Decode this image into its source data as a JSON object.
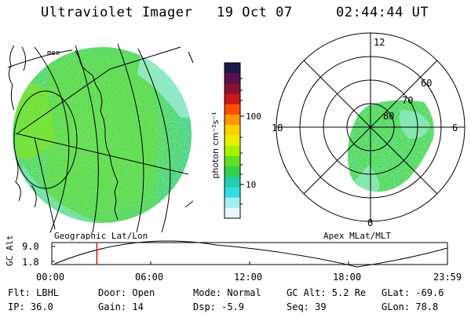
{
  "header": {
    "instrument": "Ultraviolet Imager",
    "date": "19 Oct 07",
    "time": "02:44:44 UT"
  },
  "colorbar": {
    "unit_label": "photon cm⁻²s⁻¹",
    "ticks": [
      "100",
      "10"
    ],
    "colors": [
      "#1a1a4a",
      "#5a1050",
      "#8a1030",
      "#c81818",
      "#ff5000",
      "#ff9800",
      "#ffd000",
      "#e8f000",
      "#a8f000",
      "#60e020",
      "#30d050",
      "#20d0b0",
      "#30e0e0",
      "#a0f0f0",
      "#e8f8f8"
    ]
  },
  "geo_panel": {
    "label": "Geographic Lat/Lon",
    "ocean_label": "mex"
  },
  "polar_panel": {
    "label": "Apex MLat/MLT",
    "mlt_labels": [
      "12",
      "18",
      "6",
      "0"
    ],
    "lat_labels": [
      "60",
      "70",
      "80"
    ]
  },
  "altitude_plot": {
    "ylabel": "GC Alt",
    "yticks": [
      "9.0",
      "1.8"
    ],
    "xticks": [
      "00:00",
      "06:00",
      "12:00",
      "18:00",
      "23:59"
    ],
    "marker_time": "02:44"
  },
  "info": {
    "flt": "Flt: LBHL",
    "ip": "IP: 36.0",
    "door": "Door: Open",
    "gain": "Gain: 14",
    "mode": "Mode: Normal",
    "dsp": "Dsp:   -5.9",
    "gcalt": "GC Alt: 5.2 Re",
    "seq": "Seq: 39",
    "glat": "GLat: -69.6",
    "glon": "GLon: 78.8"
  }
}
